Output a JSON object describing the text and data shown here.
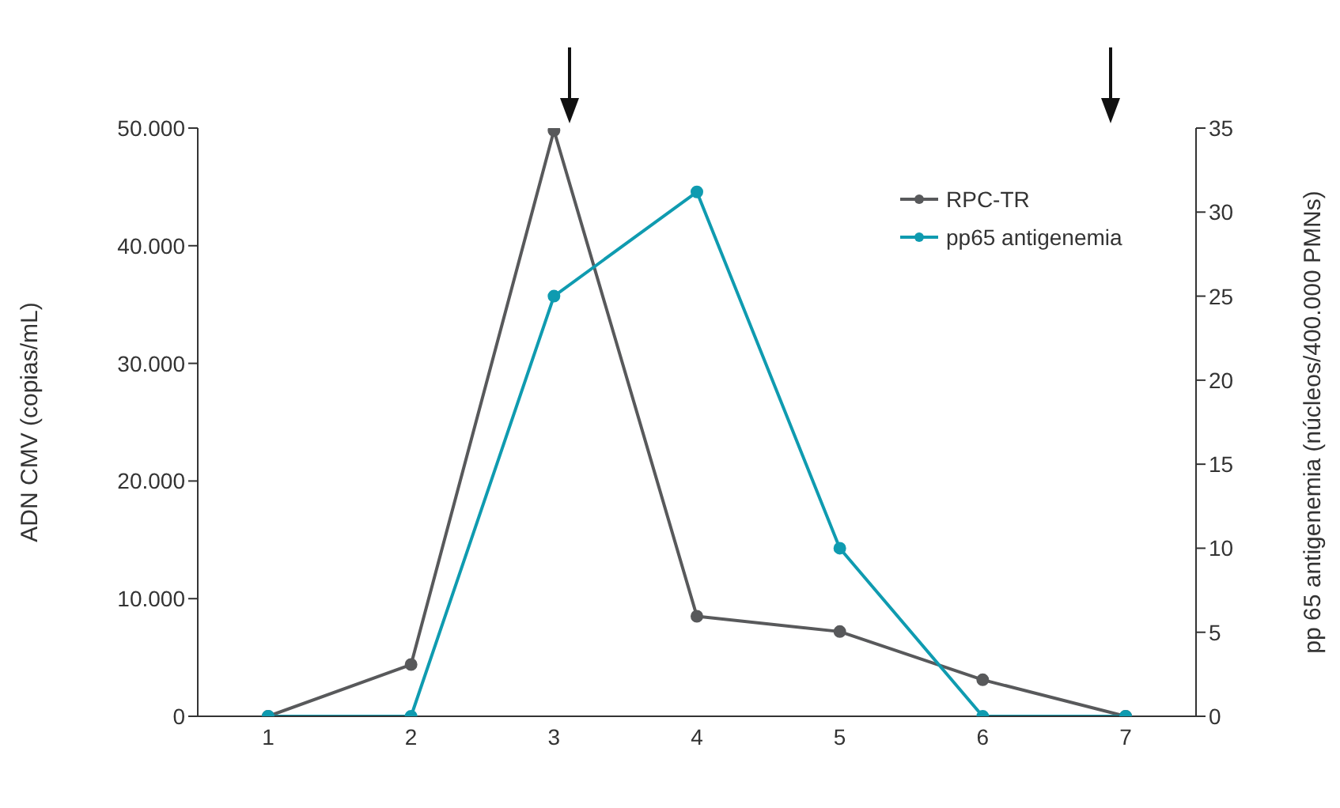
{
  "chart_data": {
    "type": "line",
    "ylabel": "ADN CMV (copias/mL)",
    "y2label": "pp 65 antigenemia (núcleos/400.000 PMNs)",
    "categories": [
      "1",
      "2",
      "3",
      "4",
      "5",
      "6",
      "7"
    ],
    "series": [
      {
        "name": "RPC-TR",
        "color": "#58595b",
        "values": [
          0,
          4400,
          49800,
          8500,
          7200,
          3100,
          0
        ]
      },
      {
        "name": "pp65 antigenemia",
        "color": "#0f9bb0",
        "axis": "y2",
        "values": [
          0,
          0,
          25,
          31.2,
          10,
          0,
          0
        ]
      }
    ],
    "ylim": [
      0,
      50000
    ],
    "yticks": [
      {
        "value": 0,
        "label": "0"
      },
      {
        "value": 10000,
        "label": "10.000"
      },
      {
        "value": 20000,
        "label": "20.000"
      },
      {
        "value": 30000,
        "label": "30.000"
      },
      {
        "value": 40000,
        "label": "40.000"
      },
      {
        "value": 50000,
        "label": "50.000"
      }
    ],
    "y2lim": [
      0,
      35
    ],
    "y2ticks": [
      0,
      5,
      10,
      15,
      20,
      25,
      30,
      35
    ],
    "legend": "top right",
    "marker": "circle",
    "line_style": "solid",
    "grid": false
  }
}
